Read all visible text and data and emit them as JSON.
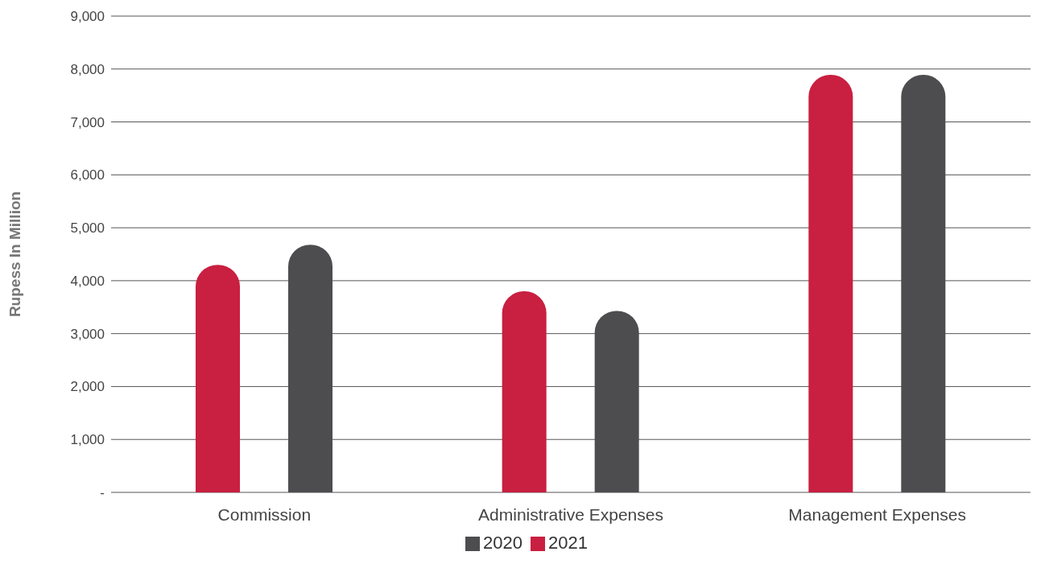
{
  "chart_data": {
    "type": "bar",
    "ylabel": "Rupess In Million",
    "categories": [
      "Commission",
      "Administrative Expenses",
      "Management Expenses"
    ],
    "series": [
      {
        "name": "2021",
        "color": "#c91f40",
        "values": [
          4300,
          3800,
          7890
        ]
      },
      {
        "name": "2020",
        "color": "#4d4d4f",
        "values": [
          4680,
          3430,
          7890
        ]
      }
    ],
    "ylim": [
      0,
      9000
    ],
    "yticks": [
      {
        "value": 0,
        "label": "-"
      },
      {
        "value": 1000,
        "label": "1,000"
      },
      {
        "value": 2000,
        "label": "2,000"
      },
      {
        "value": 3000,
        "label": "3,000"
      },
      {
        "value": 4000,
        "label": "4,000"
      },
      {
        "value": 5000,
        "label": "5,000"
      },
      {
        "value": 6000,
        "label": "6,000"
      },
      {
        "value": 7000,
        "label": "7,000"
      },
      {
        "value": 8000,
        "label": "8,000"
      },
      {
        "value": 9000,
        "label": "9,000"
      }
    ],
    "grid": "y",
    "legend": "bottom"
  }
}
